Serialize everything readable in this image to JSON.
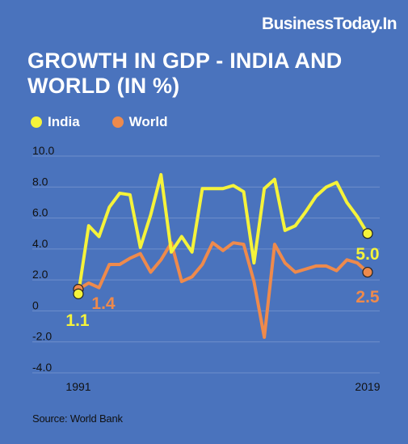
{
  "brand": "BusinessToday.In",
  "colors": {
    "background": "#4a73bd",
    "india": "#f5f33a",
    "world": "#ee8a4c",
    "gridline": "#6f8fcc",
    "axis_text": "#111111"
  },
  "source": "Source: World Bank",
  "chart_data": {
    "type": "line",
    "title_lines": [
      "GROWTH IN GDP - INDIA AND",
      "WORLD (IN %)"
    ],
    "legend_position": "top-left",
    "ylim": [
      -4,
      10
    ],
    "yticks": [
      "10.0",
      "8.0",
      "6.0",
      "4.0",
      "2.0",
      "0",
      "-2.0",
      "-4.0"
    ],
    "ytick_values": [
      10,
      8,
      6,
      4,
      2,
      0,
      -2,
      -4
    ],
    "grid": true,
    "x": [
      1991,
      1992,
      1993,
      1994,
      1995,
      1996,
      1997,
      1998,
      1999,
      2000,
      2001,
      2002,
      2003,
      2004,
      2005,
      2006,
      2007,
      2008,
      2009,
      2010,
      2011,
      2012,
      2013,
      2014,
      2015,
      2016,
      2017,
      2018,
      2019
    ],
    "xticks": [
      "1991",
      "2019"
    ],
    "series": [
      {
        "name": "India",
        "values": [
          1.1,
          5.5,
          4.8,
          6.7,
          7.6,
          7.5,
          4.1,
          6.2,
          8.8,
          3.8,
          4.8,
          3.8,
          7.9,
          7.9,
          7.9,
          8.1,
          7.7,
          3.1,
          7.9,
          8.5,
          5.2,
          5.5,
          6.4,
          7.4,
          8.0,
          8.3,
          7.0,
          6.1,
          5.0
        ],
        "end_label": "5.0"
      },
      {
        "name": "World",
        "values": [
          1.4,
          1.8,
          1.5,
          3.0,
          3.0,
          3.4,
          3.7,
          2.5,
          3.3,
          4.4,
          1.9,
          2.2,
          3.0,
          4.4,
          3.9,
          4.4,
          4.3,
          1.9,
          -1.7,
          4.3,
          3.1,
          2.5,
          2.7,
          2.9,
          2.9,
          2.6,
          3.3,
          3.1,
          2.5
        ],
        "start_label": "1.4",
        "end_label": "2.5"
      }
    ],
    "annotations": {
      "india_start": "1.1"
    }
  }
}
